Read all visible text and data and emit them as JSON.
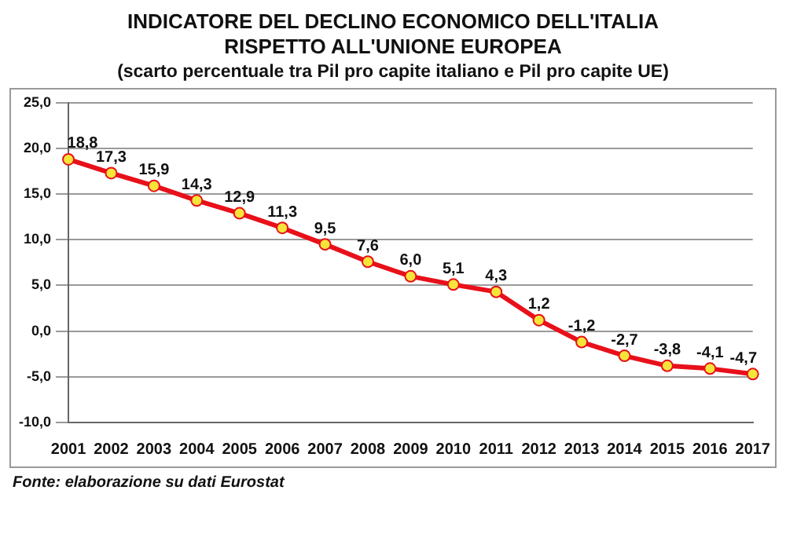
{
  "chart_data": {
    "type": "line",
    "title": "INDICATORE DEL DECLINO ECONOMICO DELL'ITALIA\nRISPETTO ALL'UNIONE EUROPEA",
    "subtitle": "(scarto percentuale tra Pil pro capite italiano e Pil pro capite UE)",
    "categories": [
      "2001",
      "2002",
      "2003",
      "2004",
      "2005",
      "2006",
      "2007",
      "2008",
      "2009",
      "2010",
      "2011",
      "2012",
      "2013",
      "2014",
      "2015",
      "2016",
      "2017"
    ],
    "series": [
      {
        "color": "#e8101a",
        "values": [
          18.8,
          17.3,
          15.9,
          14.3,
          12.9,
          11.3,
          9.5,
          7.6,
          6.0,
          5.1,
          4.3,
          1.2,
          -1.2,
          -2.7,
          -3.8,
          -4.1,
          -4.7
        ],
        "value_labels": [
          "18,8",
          "17,3",
          "15,9",
          "14,3",
          "12,9",
          "11,3",
          "9,5",
          "7,6",
          "6,0",
          "5,1",
          "4,3",
          "1,2",
          "-1,2",
          "-2,7",
          "-3,8",
          "-4,1",
          "-4,7"
        ]
      }
    ],
    "ylim": [
      -10,
      25
    ],
    "yticks": [
      {
        "value": -10,
        "label": "-10,0"
      },
      {
        "value": -5,
        "label": "-5,0"
      },
      {
        "value": 0,
        "label": "0,0"
      },
      {
        "value": 5,
        "label": "5,0"
      },
      {
        "value": 10,
        "label": "10,0"
      },
      {
        "value": 15,
        "label": "15,0"
      },
      {
        "value": 20,
        "label": "20,0"
      },
      {
        "value": 25,
        "label": "25,0"
      }
    ],
    "grid": "y",
    "marker": "circle",
    "line_style": "solid",
    "legend": false,
    "annotations": [
      "Fonte: elaborazione su dati Eurostat"
    ]
  }
}
